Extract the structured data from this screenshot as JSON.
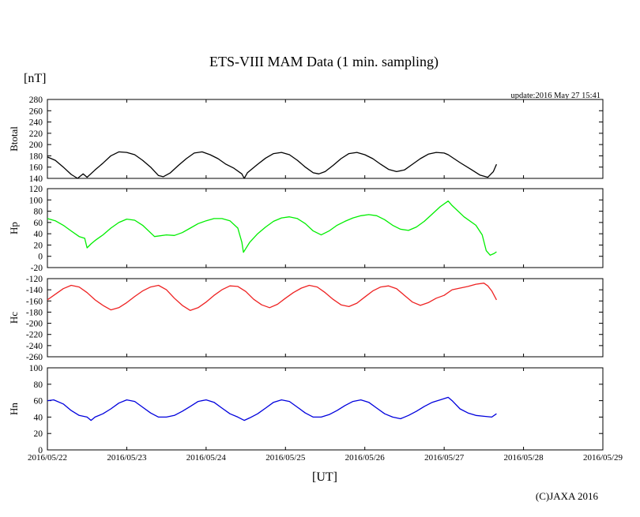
{
  "chart_data": {
    "type": "line",
    "title": "ETS-VIII MAM Data (1 min. sampling)",
    "unit_label": "[nT]",
    "update_text": "update:2016 May 27 15:41",
    "xlabel": "[UT]",
    "copyright": "(C)JAXA 2016",
    "x_unit": "days since 2016/05/22 00:00 UT",
    "xlim": [
      0,
      7
    ],
    "x_ticks": [
      {
        "x": 0,
        "label": "2016/05/22"
      },
      {
        "x": 1,
        "label": "2016/05/23"
      },
      {
        "x": 2,
        "label": "2016/05/24"
      },
      {
        "x": 3,
        "label": "2016/05/25"
      },
      {
        "x": 4,
        "label": "2016/05/26"
      },
      {
        "x": 5,
        "label": "2016/05/27"
      },
      {
        "x": 6,
        "label": "2016/05/28"
      },
      {
        "x": 7,
        "label": "2016/05/29"
      }
    ],
    "panels": [
      {
        "name": "Btotal",
        "ylabel": "Btotal",
        "color": "#000000",
        "ylim": [
          140,
          280
        ],
        "yticks": [
          280,
          260,
          240,
          220,
          200,
          180,
          160,
          140
        ],
        "series": [
          [
            0.0,
            178
          ],
          [
            0.1,
            172
          ],
          [
            0.2,
            160
          ],
          [
            0.3,
            147
          ],
          [
            0.38,
            140
          ],
          [
            0.45,
            148
          ],
          [
            0.5,
            142
          ],
          [
            0.6,
            155
          ],
          [
            0.7,
            167
          ],
          [
            0.8,
            180
          ],
          [
            0.9,
            187
          ],
          [
            1.0,
            186
          ],
          [
            1.1,
            182
          ],
          [
            1.2,
            172
          ],
          [
            1.3,
            160
          ],
          [
            1.4,
            145
          ],
          [
            1.46,
            143
          ],
          [
            1.55,
            150
          ],
          [
            1.65,
            163
          ],
          [
            1.75,
            175
          ],
          [
            1.85,
            185
          ],
          [
            1.95,
            187
          ],
          [
            2.05,
            182
          ],
          [
            2.15,
            175
          ],
          [
            2.25,
            165
          ],
          [
            2.35,
            158
          ],
          [
            2.45,
            148
          ],
          [
            2.48,
            140
          ],
          [
            2.52,
            150
          ],
          [
            2.65,
            165
          ],
          [
            2.75,
            176
          ],
          [
            2.85,
            184
          ],
          [
            2.95,
            186
          ],
          [
            3.05,
            182
          ],
          [
            3.15,
            172
          ],
          [
            3.25,
            160
          ],
          [
            3.35,
            150
          ],
          [
            3.42,
            148
          ],
          [
            3.5,
            152
          ],
          [
            3.6,
            163
          ],
          [
            3.7,
            175
          ],
          [
            3.8,
            184
          ],
          [
            3.9,
            186
          ],
          [
            4.0,
            182
          ],
          [
            4.1,
            175
          ],
          [
            4.2,
            165
          ],
          [
            4.3,
            156
          ],
          [
            4.4,
            152
          ],
          [
            4.5,
            155
          ],
          [
            4.6,
            165
          ],
          [
            4.7,
            175
          ],
          [
            4.8,
            183
          ],
          [
            4.9,
            186
          ],
          [
            5.0,
            185
          ],
          [
            5.05,
            182
          ],
          [
            5.2,
            168
          ],
          [
            5.35,
            155
          ],
          [
            5.45,
            146
          ],
          [
            5.55,
            142
          ],
          [
            5.62,
            152
          ],
          [
            5.66,
            165
          ]
        ]
      },
      {
        "name": "Hp",
        "ylabel": "Hp",
        "color": "#00ee00",
        "ylim": [
          -20,
          120
        ],
        "yticks": [
          120,
          100,
          80,
          60,
          40,
          20,
          0,
          -20
        ],
        "series": [
          [
            0.0,
            67
          ],
          [
            0.1,
            63
          ],
          [
            0.2,
            55
          ],
          [
            0.3,
            45
          ],
          [
            0.4,
            35
          ],
          [
            0.47,
            32
          ],
          [
            0.5,
            15
          ],
          [
            0.55,
            22
          ],
          [
            0.6,
            28
          ],
          [
            0.7,
            38
          ],
          [
            0.8,
            50
          ],
          [
            0.9,
            60
          ],
          [
            1.0,
            66
          ],
          [
            1.1,
            64
          ],
          [
            1.2,
            55
          ],
          [
            1.35,
            35
          ],
          [
            1.5,
            38
          ],
          [
            1.6,
            37
          ],
          [
            1.7,
            42
          ],
          [
            1.8,
            50
          ],
          [
            1.9,
            58
          ],
          [
            2.0,
            63
          ],
          [
            2.1,
            67
          ],
          [
            2.2,
            67
          ],
          [
            2.3,
            63
          ],
          [
            2.4,
            50
          ],
          [
            2.45,
            25
          ],
          [
            2.47,
            7
          ],
          [
            2.55,
            25
          ],
          [
            2.65,
            40
          ],
          [
            2.75,
            52
          ],
          [
            2.85,
            62
          ],
          [
            2.95,
            68
          ],
          [
            3.05,
            70
          ],
          [
            3.15,
            67
          ],
          [
            3.25,
            58
          ],
          [
            3.35,
            45
          ],
          [
            3.45,
            38
          ],
          [
            3.55,
            45
          ],
          [
            3.65,
            55
          ],
          [
            3.75,
            62
          ],
          [
            3.85,
            68
          ],
          [
            3.95,
            72
          ],
          [
            4.05,
            74
          ],
          [
            4.15,
            72
          ],
          [
            4.25,
            65
          ],
          [
            4.35,
            55
          ],
          [
            4.45,
            48
          ],
          [
            4.55,
            46
          ],
          [
            4.65,
            52
          ],
          [
            4.75,
            62
          ],
          [
            4.85,
            75
          ],
          [
            4.95,
            88
          ],
          [
            5.05,
            98
          ],
          [
            5.1,
            90
          ],
          [
            5.25,
            70
          ],
          [
            5.4,
            55
          ],
          [
            5.48,
            38
          ],
          [
            5.53,
            10
          ],
          [
            5.58,
            2
          ],
          [
            5.63,
            5
          ],
          [
            5.66,
            8
          ]
        ]
      },
      {
        "name": "Hc",
        "ylabel": "Hc",
        "color": "#ee2222",
        "ylim": [
          -260,
          -120
        ],
        "yticks": [
          -120,
          -140,
          -160,
          -180,
          -200,
          -220,
          -240,
          -260
        ],
        "series": [
          [
            0.0,
            -158
          ],
          [
            0.1,
            -148
          ],
          [
            0.2,
            -138
          ],
          [
            0.3,
            -132
          ],
          [
            0.4,
            -135
          ],
          [
            0.5,
            -145
          ],
          [
            0.6,
            -158
          ],
          [
            0.7,
            -168
          ],
          [
            0.8,
            -176
          ],
          [
            0.9,
            -172
          ],
          [
            1.0,
            -163
          ],
          [
            1.1,
            -152
          ],
          [
            1.2,
            -142
          ],
          [
            1.3,
            -135
          ],
          [
            1.4,
            -132
          ],
          [
            1.5,
            -140
          ],
          [
            1.6,
            -155
          ],
          [
            1.7,
            -168
          ],
          [
            1.8,
            -177
          ],
          [
            1.9,
            -172
          ],
          [
            2.0,
            -162
          ],
          [
            2.1,
            -150
          ],
          [
            2.2,
            -140
          ],
          [
            2.3,
            -133
          ],
          [
            2.4,
            -134
          ],
          [
            2.5,
            -143
          ],
          [
            2.6,
            -157
          ],
          [
            2.7,
            -167
          ],
          [
            2.8,
            -172
          ],
          [
            2.9,
            -166
          ],
          [
            3.0,
            -155
          ],
          [
            3.1,
            -145
          ],
          [
            3.2,
            -137
          ],
          [
            3.3,
            -132
          ],
          [
            3.4,
            -135
          ],
          [
            3.5,
            -145
          ],
          [
            3.6,
            -157
          ],
          [
            3.7,
            -167
          ],
          [
            3.8,
            -170
          ],
          [
            3.9,
            -164
          ],
          [
            4.0,
            -153
          ],
          [
            4.1,
            -142
          ],
          [
            4.2,
            -135
          ],
          [
            4.3,
            -133
          ],
          [
            4.4,
            -138
          ],
          [
            4.5,
            -150
          ],
          [
            4.6,
            -162
          ],
          [
            4.7,
            -168
          ],
          [
            4.8,
            -163
          ],
          [
            4.9,
            -155
          ],
          [
            5.0,
            -150
          ],
          [
            5.1,
            -140
          ],
          [
            5.2,
            -137
          ],
          [
            5.3,
            -134
          ],
          [
            5.4,
            -130
          ],
          [
            5.5,
            -128
          ],
          [
            5.55,
            -133
          ],
          [
            5.6,
            -142
          ],
          [
            5.66,
            -158
          ]
        ]
      },
      {
        "name": "Hn",
        "ylabel": "Hn",
        "color": "#0000dd",
        "ylim": [
          0,
          100
        ],
        "yticks": [
          100,
          80,
          60,
          40,
          20,
          0
        ],
        "series": [
          [
            0.0,
            60
          ],
          [
            0.08,
            61
          ],
          [
            0.2,
            56
          ],
          [
            0.3,
            48
          ],
          [
            0.4,
            42
          ],
          [
            0.5,
            40
          ],
          [
            0.55,
            36
          ],
          [
            0.6,
            40
          ],
          [
            0.7,
            44
          ],
          [
            0.8,
            50
          ],
          [
            0.9,
            57
          ],
          [
            1.0,
            61
          ],
          [
            1.1,
            59
          ],
          [
            1.2,
            52
          ],
          [
            1.3,
            45
          ],
          [
            1.4,
            40
          ],
          [
            1.5,
            40
          ],
          [
            1.6,
            42
          ],
          [
            1.7,
            47
          ],
          [
            1.8,
            53
          ],
          [
            1.9,
            59
          ],
          [
            2.0,
            61
          ],
          [
            2.1,
            58
          ],
          [
            2.2,
            51
          ],
          [
            2.3,
            44
          ],
          [
            2.4,
            40
          ],
          [
            2.48,
            36
          ],
          [
            2.55,
            39
          ],
          [
            2.65,
            44
          ],
          [
            2.75,
            51
          ],
          [
            2.85,
            58
          ],
          [
            2.95,
            61
          ],
          [
            3.05,
            59
          ],
          [
            3.15,
            52
          ],
          [
            3.25,
            45
          ],
          [
            3.35,
            40
          ],
          [
            3.45,
            40
          ],
          [
            3.55,
            43
          ],
          [
            3.65,
            48
          ],
          [
            3.75,
            54
          ],
          [
            3.85,
            59
          ],
          [
            3.95,
            61
          ],
          [
            4.05,
            58
          ],
          [
            4.15,
            51
          ],
          [
            4.25,
            44
          ],
          [
            4.35,
            40
          ],
          [
            4.45,
            38
          ],
          [
            4.55,
            42
          ],
          [
            4.65,
            47
          ],
          [
            4.75,
            53
          ],
          [
            4.85,
            58
          ],
          [
            4.95,
            61
          ],
          [
            5.05,
            64
          ],
          [
            5.1,
            60
          ],
          [
            5.2,
            50
          ],
          [
            5.3,
            45
          ],
          [
            5.4,
            42
          ],
          [
            5.5,
            41
          ],
          [
            5.6,
            40
          ],
          [
            5.66,
            44
          ]
        ]
      }
    ]
  }
}
